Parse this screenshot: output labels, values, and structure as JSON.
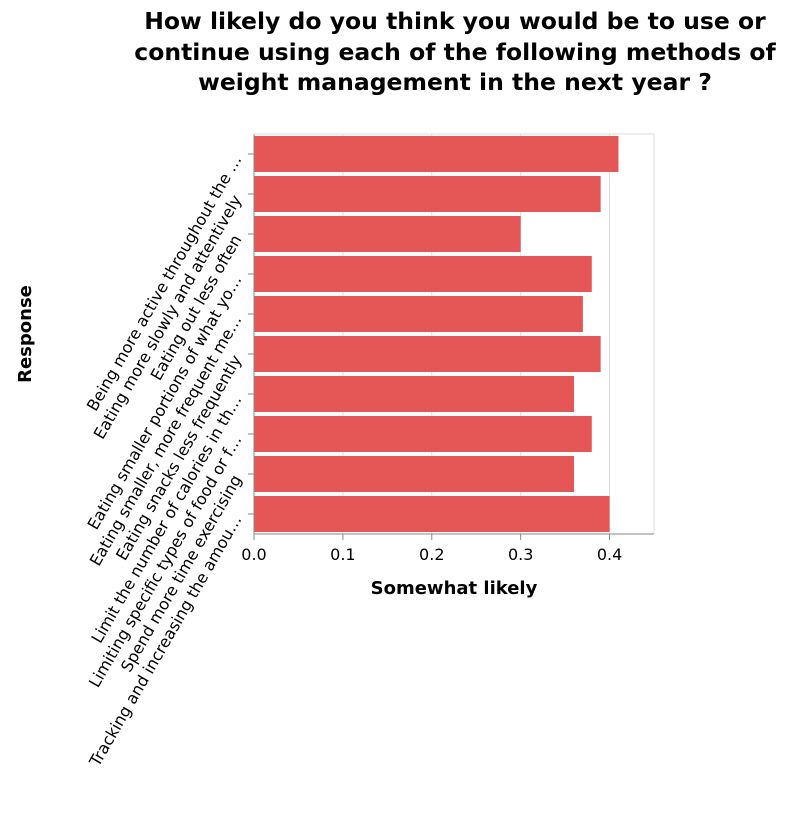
{
  "chart_data": {
    "type": "bar",
    "orientation": "horizontal",
    "title": "How likely do you think you would be to use or continue using each of the following methods of weight management in the next year ?",
    "xlabel": "Somewhat likely",
    "ylabel": "Response",
    "xlim": [
      0,
      0.45
    ],
    "x_ticks": [
      "0.0",
      "0.1",
      "0.2",
      "0.3",
      "0.4"
    ],
    "categories": [
      "Being more active throughout the …",
      "Eating more slowly and attentively",
      "Eating out less often",
      "Eating smaller portions of what yo…",
      "Eating smaller, more frequent me…",
      "Eating snacks less frequently",
      "Limit the number of calories in th…",
      "Limiting specific types of food or f…",
      "Spend more time exercising",
      "Tracking and increasing the amou…"
    ],
    "values": [
      0.41,
      0.39,
      0.3,
      0.38,
      0.37,
      0.39,
      0.36,
      0.38,
      0.36,
      0.4
    ],
    "bar_color": "#e45756",
    "grid": true,
    "legend": "none"
  }
}
